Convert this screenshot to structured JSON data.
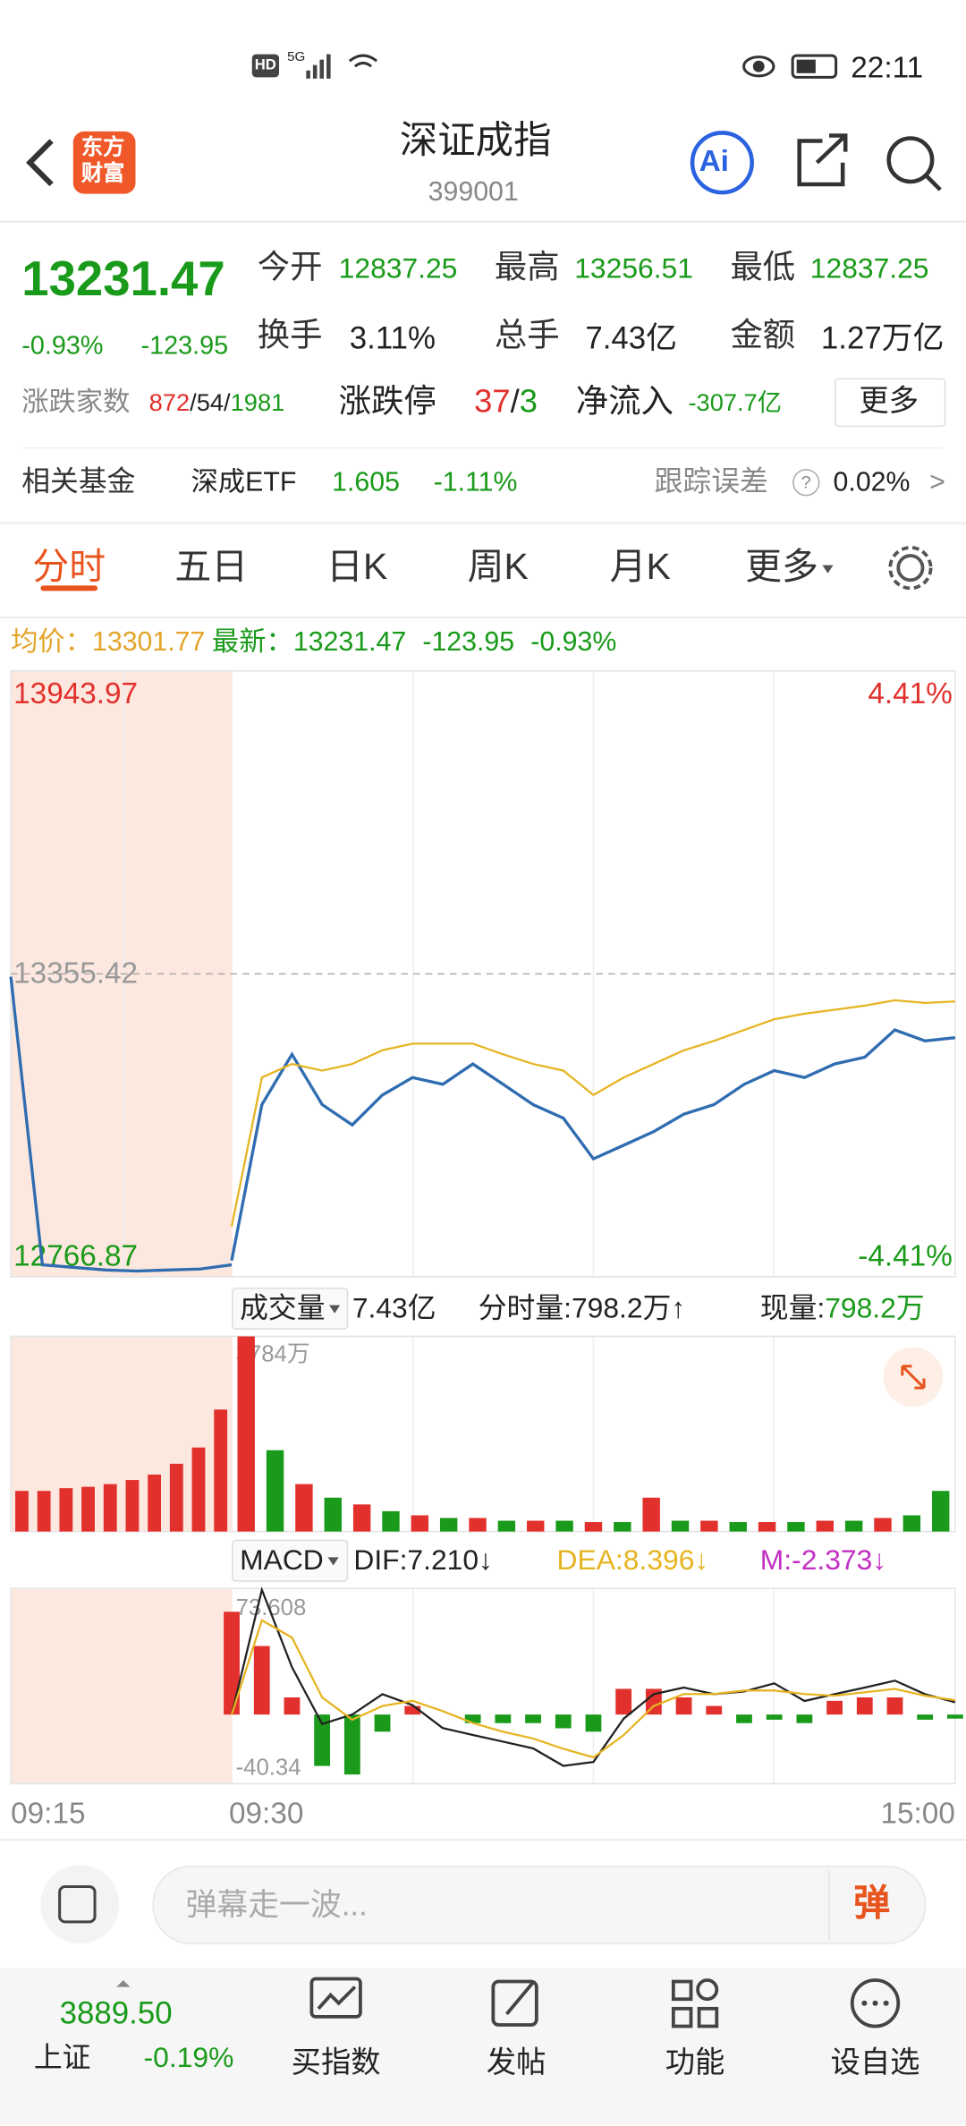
{
  "status_bar": {
    "network": "HD",
    "signal": "5G",
    "time": "22:11"
  },
  "header": {
    "logo": [
      "东方",
      "财富"
    ],
    "title": "深证成指",
    "code": "399001",
    "ai": "Ai"
  },
  "quote": {
    "price": "13231.47",
    "change_pct": "-0.93%",
    "change": "-123.95",
    "stats": [
      {
        "label": "今开",
        "value": "12837.25"
      },
      {
        "label": "最高",
        "value": "13256.51"
      },
      {
        "label": "最低",
        "value": "12837.25"
      },
      {
        "label": "换手",
        "value": "3.11%"
      },
      {
        "label": "总手",
        "value": "7.43亿"
      },
      {
        "label": "金额",
        "value": "1.27万亿"
      }
    ],
    "breadth": {
      "label": "涨跌家数",
      "up": "872",
      "flat": "/54/",
      "down": "1981"
    },
    "limit": {
      "label": "涨跌停",
      "up": "37",
      "sep": "/",
      "down": "3"
    },
    "net_inflow": {
      "label": "净流入",
      "value": "-307.7亿"
    },
    "more": "更多"
  },
  "fund": {
    "label": "相关基金",
    "name": "深成ETF",
    "price": "1.605",
    "change": "-1.11%",
    "tracking_label": "跟踪误差",
    "tracking_value": "0.02%",
    "help": "?",
    "arrow": ">"
  },
  "tabs": [
    "分时",
    "五日",
    "日K",
    "周K",
    "月K",
    "更多"
  ],
  "info": {
    "avg_label": "均价：",
    "avg": "13301.77",
    "last_label": "最新：",
    "last": "13231.47",
    "change": "-123.95",
    "change_pct": "-0.93%"
  },
  "chart_data": [
    {
      "type": "line",
      "band_color": "#fde8df",
      "ylim": [
        12766.87,
        13943.97
      ],
      "yticks": [
        12766.87,
        13355.42,
        13943.97
      ],
      "ytick_colors": [
        "#1a9a1a",
        "#999999",
        "#e2302c"
      ],
      "y2lim": [
        -4.41,
        4.41
      ],
      "y2ticks": [
        {
          "value": -4.41,
          "label": "-4.41%"
        },
        {
          "value": 4.41,
          "label": "4.41%"
        }
      ],
      "y2tick_colors": [
        "#1a9a1a",
        "#e2302c"
      ],
      "series": [
        {
          "color": "#2f6cb0",
          "values": [
            13350,
            12790,
            12785,
            12780,
            12778,
            12780,
            12782,
            12790
          ]
        },
        {
          "color": "#2f6cb0",
          "values": [
            12798.6,
            13101.4,
            13198.9,
            13101.4,
            13061.9,
            13119.9,
            13154.1,
            13140.9,
            13180.4,
            13140.9,
            13101.4,
            13075.1,
            12996.1,
            13022.4,
            13048.8,
            13083.0,
            13101.4,
            13140.9,
            13167.3,
            13154.1,
            13180.4,
            13193.6,
            13246.3,
            13225.2,
            13231.47
          ]
        },
        {
          "color": "#e6b422",
          "values": [
            12864.5,
            13154.1,
            13180.4,
            13167.3,
            13180.4,
            13206.8,
            13219.9,
            13219.9,
            13219.9,
            13198.9,
            13180.4,
            13167.3,
            13119.9,
            13154.1,
            13180.4,
            13206.8,
            13225.2,
            13246.3,
            13267.3,
            13277.9,
            13285.7,
            13293.6,
            13304.2,
            13298.9,
            13301.77
          ]
        }
      ]
    },
    {
      "type": "bar",
      "label": "成交量",
      "total": "7.43亿",
      "tick_volume": "分时量:798.2万↑",
      "current_label": "现量:",
      "current": "798.2万",
      "ylim": [
        0,
        3784
      ],
      "yticks": [
        {
          "value": 3784,
          "label": "3784万"
        }
      ],
      "series": [
        {
          "color": "#e2302c",
          "values": [
            788,
            788,
            841,
            867,
            920,
            999,
            1104,
            1314,
            1629,
            2365
          ]
        },
        {
          "colors": [
            "#e2302c",
            "#1a9a1a",
            "#e2302c",
            "#1a9a1a",
            "#e2302c",
            "#1a9a1a",
            "#e2302c",
            "#1a9a1a",
            "#e2302c",
            "#1a9a1a",
            "#e2302c",
            "#1a9a1a",
            "#e2302c",
            "#1a9a1a",
            "#e2302c",
            "#1a9a1a",
            "#e2302c",
            "#1a9a1a",
            "#e2302c",
            "#1a9a1a",
            "#e2302c",
            "#1a9a1a",
            "#e2302c",
            "#1a9a1a",
            "#1a9a1a"
          ],
          "values": [
            3784,
            1577,
            920,
            657,
            526,
            394,
            315,
            263,
            263,
            210,
            210,
            210,
            184,
            184,
            657,
            210,
            210,
            184,
            184,
            184,
            210,
            210,
            263,
            315,
            788
          ]
        }
      ]
    },
    {
      "type": "macd",
      "label": "MACD",
      "dif": "DIF:7.210↓",
      "dea": "DEA:8.396↓",
      "m": "M:-2.373↓",
      "dif_color": "#222222",
      "dea_color": "#e6b422",
      "m_color": "#c22fc2",
      "ylim": [
        -40.34,
        73.608
      ],
      "yticks": [
        -40.34,
        73.608
      ],
      "up_color": "#e2302c",
      "down_color": "#1a9a1a",
      "series": [
        {
          "values": [
            60,
            40,
            10,
            -30,
            -35,
            -10,
            5,
            0,
            -5,
            -5,
            -5,
            -8,
            -10,
            15,
            15,
            10,
            5,
            -5,
            -3,
            -5,
            8,
            10,
            10,
            -3,
            -2.373
          ]
        },
        {
          "color": "#222222",
          "values": [
            0,
            72.8,
            27.7,
            -5.5,
            0,
            11.9,
            5.5,
            -7.9,
            -11.9,
            -15.8,
            -19.8,
            -30,
            -27.7,
            -2.4,
            11.9,
            15.8,
            11.9,
            13.5,
            18.2,
            7.9,
            11.9,
            15.8,
            19.8,
            11.9,
            7.21
          ]
        },
        {
          "color": "#e6b422",
          "values": [
            0,
            55,
            45,
            10,
            -3,
            5,
            8,
            2,
            -5,
            -10,
            -14,
            -20,
            -25,
            -12,
            5,
            12,
            12,
            14,
            14,
            12,
            11,
            13,
            15,
            11,
            8.396
          ]
        }
      ]
    }
  ],
  "time_axis": [
    "09:15",
    "09:30",
    "15:00"
  ],
  "comment": {
    "placeholder": "弹幕走一波...",
    "button": "弹"
  },
  "bottom": {
    "index_value": "3889.50",
    "index_name": "上证",
    "index_change": "-0.19%",
    "nav": [
      "买指数",
      "发帖",
      "功能",
      "设自选"
    ]
  }
}
